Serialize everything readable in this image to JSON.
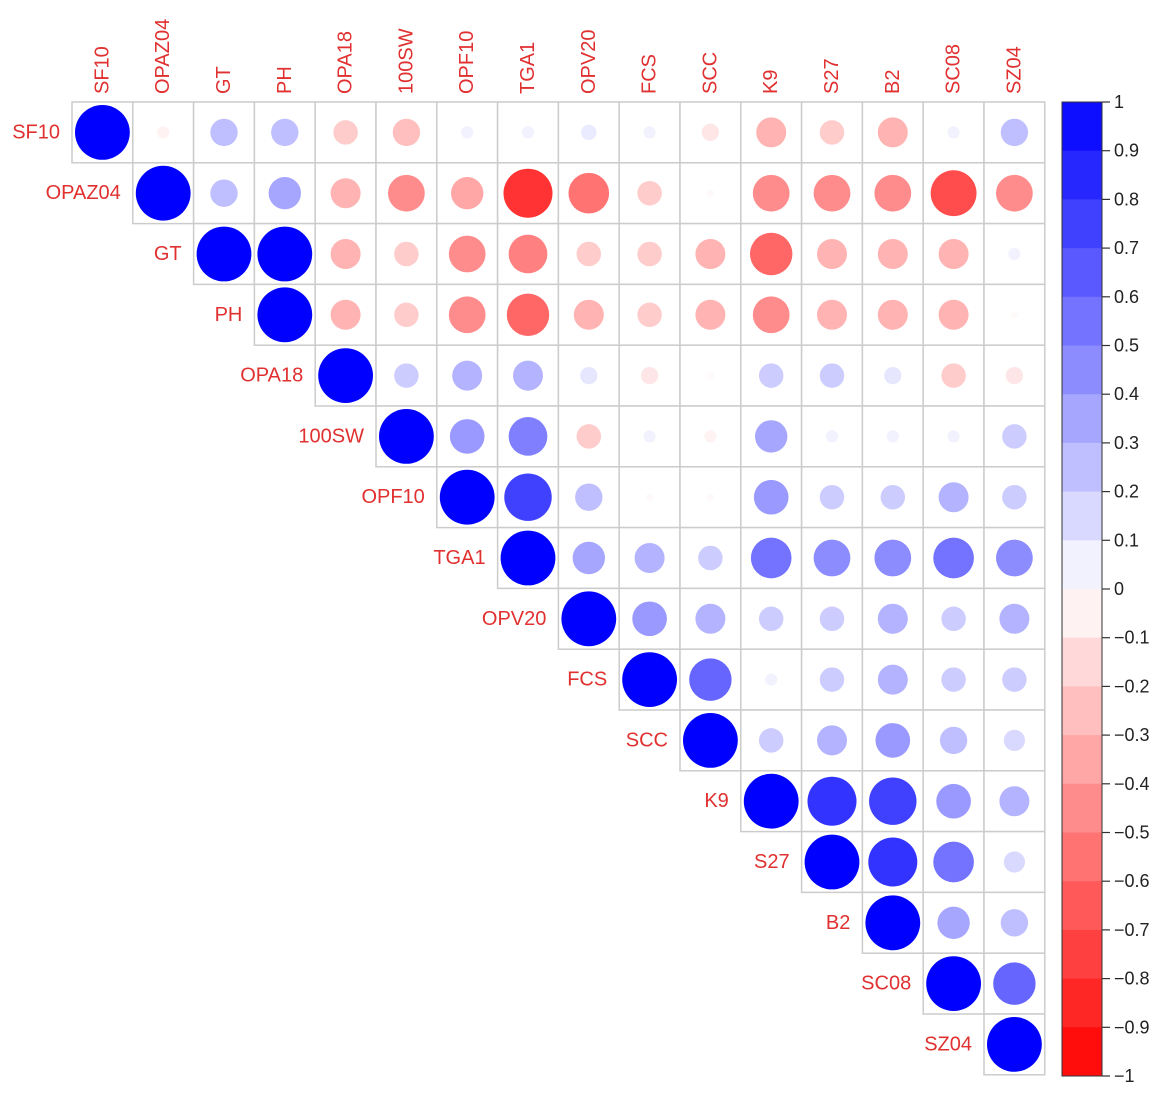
{
  "chart_data": {
    "type": "heatmap",
    "subtype": "correlation-circle-upper",
    "labels": [
      "SF10",
      "OPAZ04",
      "GT",
      "PH",
      "OPA18",
      "100SW",
      "OPF10",
      "TGA1",
      "OPV20",
      "FCS",
      "SCC",
      "K9",
      "S27",
      "B2",
      "SC08",
      "SZ04"
    ],
    "label_color": "#e03030",
    "colorbar": {
      "min": -1,
      "max": 1,
      "steps": 20,
      "ticks": [
        1,
        0.9,
        0.8,
        0.7,
        0.6,
        0.5,
        0.4,
        0.3,
        0.2,
        0.1,
        0,
        -0.1,
        -0.2,
        -0.3,
        -0.4,
        -0.5,
        -0.6,
        -0.7,
        -0.8,
        -0.9,
        -1
      ],
      "tick_labels": [
        "1",
        "0.9",
        "0.8",
        "0.7",
        "0.6",
        "0.5",
        "0.4",
        "0.3",
        "0.2",
        "0.1",
        "0",
        "−0.1",
        "−0.2",
        "−0.3",
        "−0.4",
        "−0.5",
        "−0.6",
        "−0.7",
        "−0.8",
        "−0.9",
        "−1"
      ],
      "positive_color": "#0000ff",
      "negative_color": "#ff0000"
    },
    "matrix": [
      [
        1,
        -0.05,
        0.25,
        0.25,
        -0.2,
        -0.25,
        0.05,
        0.05,
        0.08,
        0.05,
        -0.1,
        -0.3,
        -0.2,
        -0.3,
        0.05,
        0.25
      ],
      [
        null,
        1,
        0.25,
        0.35,
        -0.3,
        -0.45,
        -0.35,
        -0.8,
        -0.55,
        -0.2,
        -0.02,
        -0.45,
        -0.45,
        -0.45,
        -0.7,
        -0.45
      ],
      [
        null,
        null,
        1,
        1,
        -0.3,
        -0.2,
        -0.45,
        -0.5,
        -0.2,
        -0.2,
        -0.3,
        -0.6,
        -0.3,
        -0.3,
        -0.3,
        0.05
      ],
      [
        null,
        null,
        null,
        1,
        -0.3,
        -0.2,
        -0.45,
        -0.6,
        -0.3,
        -0.2,
        -0.3,
        -0.45,
        -0.3,
        -0.3,
        -0.3,
        -0.02
      ],
      [
        null,
        null,
        null,
        null,
        1,
        0.2,
        0.3,
        0.3,
        0.1,
        -0.1,
        -0.02,
        0.2,
        0.2,
        0.1,
        -0.2,
        -0.1
      ],
      [
        null,
        null,
        null,
        null,
        null,
        1,
        0.4,
        0.5,
        -0.2,
        0.05,
        -0.05,
        0.35,
        0.05,
        0.05,
        0.05,
        0.2
      ],
      [
        null,
        null,
        null,
        null,
        null,
        null,
        1,
        0.75,
        0.25,
        -0.02,
        -0.02,
        0.4,
        0.2,
        0.2,
        0.3,
        0.2
      ],
      [
        null,
        null,
        null,
        null,
        null,
        null,
        null,
        1,
        0.35,
        0.3,
        0.2,
        0.55,
        0.45,
        0.45,
        0.55,
        0.45
      ],
      [
        null,
        null,
        null,
        null,
        null,
        null,
        null,
        null,
        1,
        0.4,
        0.3,
        0.2,
        0.2,
        0.3,
        0.2,
        0.3
      ],
      [
        null,
        null,
        null,
        null,
        null,
        null,
        null,
        null,
        null,
        1,
        0.6,
        0.05,
        0.2,
        0.3,
        0.2,
        0.2
      ],
      [
        null,
        null,
        null,
        null,
        null,
        null,
        null,
        null,
        null,
        null,
        1,
        0.2,
        0.3,
        0.4,
        0.25,
        0.15
      ],
      [
        null,
        null,
        null,
        null,
        null,
        null,
        null,
        null,
        null,
        null,
        null,
        1,
        0.8,
        0.75,
        0.4,
        0.3
      ],
      [
        null,
        null,
        null,
        null,
        null,
        null,
        null,
        null,
        null,
        null,
        null,
        null,
        1,
        0.8,
        0.55,
        0.15
      ],
      [
        null,
        null,
        null,
        null,
        null,
        null,
        null,
        null,
        null,
        null,
        null,
        null,
        null,
        1,
        0.35,
        0.25
      ],
      [
        null,
        null,
        null,
        null,
        null,
        null,
        null,
        null,
        null,
        null,
        null,
        null,
        null,
        null,
        1,
        0.6
      ],
      [
        null,
        null,
        null,
        null,
        null,
        null,
        null,
        null,
        null,
        null,
        null,
        null,
        null,
        null,
        null,
        1
      ]
    ]
  }
}
